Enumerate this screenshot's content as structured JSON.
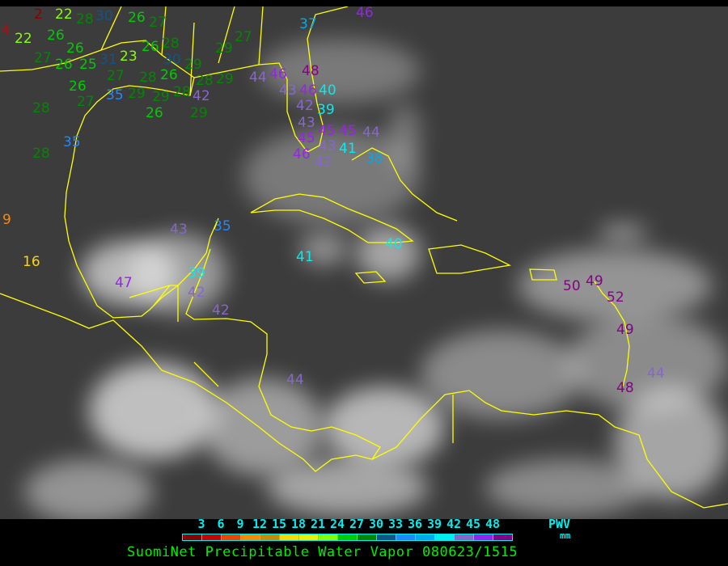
{
  "legend": {
    "ticks": [
      "3",
      "6",
      "9",
      "12",
      "15",
      "18",
      "21",
      "24",
      "27",
      "30",
      "33",
      "36",
      "39",
      "42",
      "45",
      "48"
    ],
    "colors": [
      "#8b0000",
      "#cc0000",
      "#ee4400",
      "#ff8800",
      "#cc8800",
      "#ffd700",
      "#eeee00",
      "#88ff00",
      "#00cc00",
      "#008800",
      "#115588",
      "#2288ff",
      "#00aaee",
      "#00eeee",
      "#8866cc",
      "#9922ee",
      "#880088"
    ],
    "unit_label": "PWV",
    "unit": "mm"
  },
  "caption": "SuomiNet Precipitable Water Vapor 080623/1515",
  "coastline_color": "#ffff00",
  "stations": [
    "2",
    "22",
    "28",
    "30",
    "26",
    "27",
    "4",
    "22",
    "26",
    "26",
    "27",
    "26",
    "25",
    "31",
    "23",
    "27",
    "28",
    "29",
    "26",
    "28",
    "29",
    "28",
    "30",
    "26",
    "29",
    "28",
    "29",
    "27",
    "26",
    "28",
    "26",
    "29",
    "27",
    "35",
    "42",
    "29",
    "35",
    "28",
    "44",
    "46",
    "48",
    "43",
    "46",
    "40",
    "42",
    "43",
    "39",
    "45",
    "45",
    "45",
    "43",
    "46",
    "42",
    "41",
    "37",
    "46",
    "44",
    "38",
    "9",
    "16",
    "43",
    "35",
    "47",
    "39",
    "42",
    "42",
    "41",
    "40",
    "44",
    "50",
    "49",
    "52",
    "49",
    "48",
    "44"
  ]
}
